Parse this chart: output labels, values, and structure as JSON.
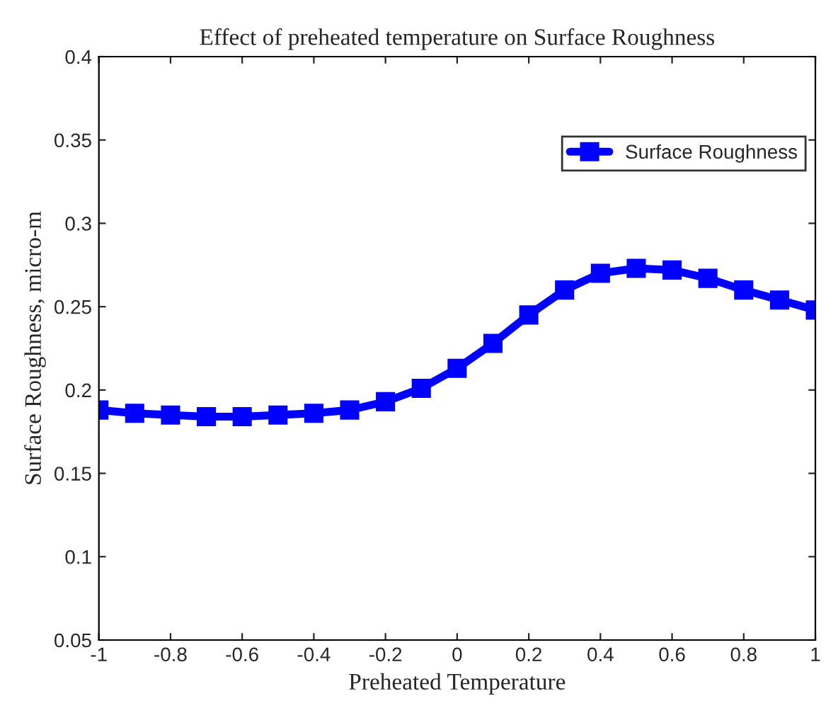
{
  "chart_data": {
    "type": "line",
    "title": "Effect of preheated temperature on Surface Roughness",
    "xlabel": "Preheated Temperature",
    "ylabel": "Surface Roughness, micro-m",
    "x": [
      -1,
      -0.9,
      -0.8,
      -0.7,
      -0.6,
      -0.5,
      -0.4,
      -0.3,
      -0.2,
      -0.1,
      0,
      0.1,
      0.2,
      0.3,
      0.4,
      0.5,
      0.6,
      0.7,
      0.8,
      0.9,
      1
    ],
    "series": [
      {
        "name": "Surface Roughness",
        "color": "#0000ff",
        "values": [
          0.188,
          0.186,
          0.185,
          0.184,
          0.184,
          0.185,
          0.186,
          0.188,
          0.193,
          0.201,
          0.213,
          0.228,
          0.245,
          0.26,
          0.27,
          0.273,
          0.272,
          0.267,
          0.26,
          0.254,
          0.248
        ]
      }
    ],
    "xlim": [
      -1,
      1
    ],
    "xticks": [
      -1,
      -0.8,
      -0.6,
      -0.4,
      -0.2,
      0,
      0.2,
      0.4,
      0.6,
      0.8,
      1
    ],
    "ylim": [
      0.05,
      0.4
    ],
    "yticks": [
      0.05,
      0.1,
      0.15,
      0.2,
      0.25,
      0.3,
      0.35,
      0.4
    ],
    "marker": "square",
    "line_style": "solid",
    "legend": "top right",
    "grid": false
  }
}
